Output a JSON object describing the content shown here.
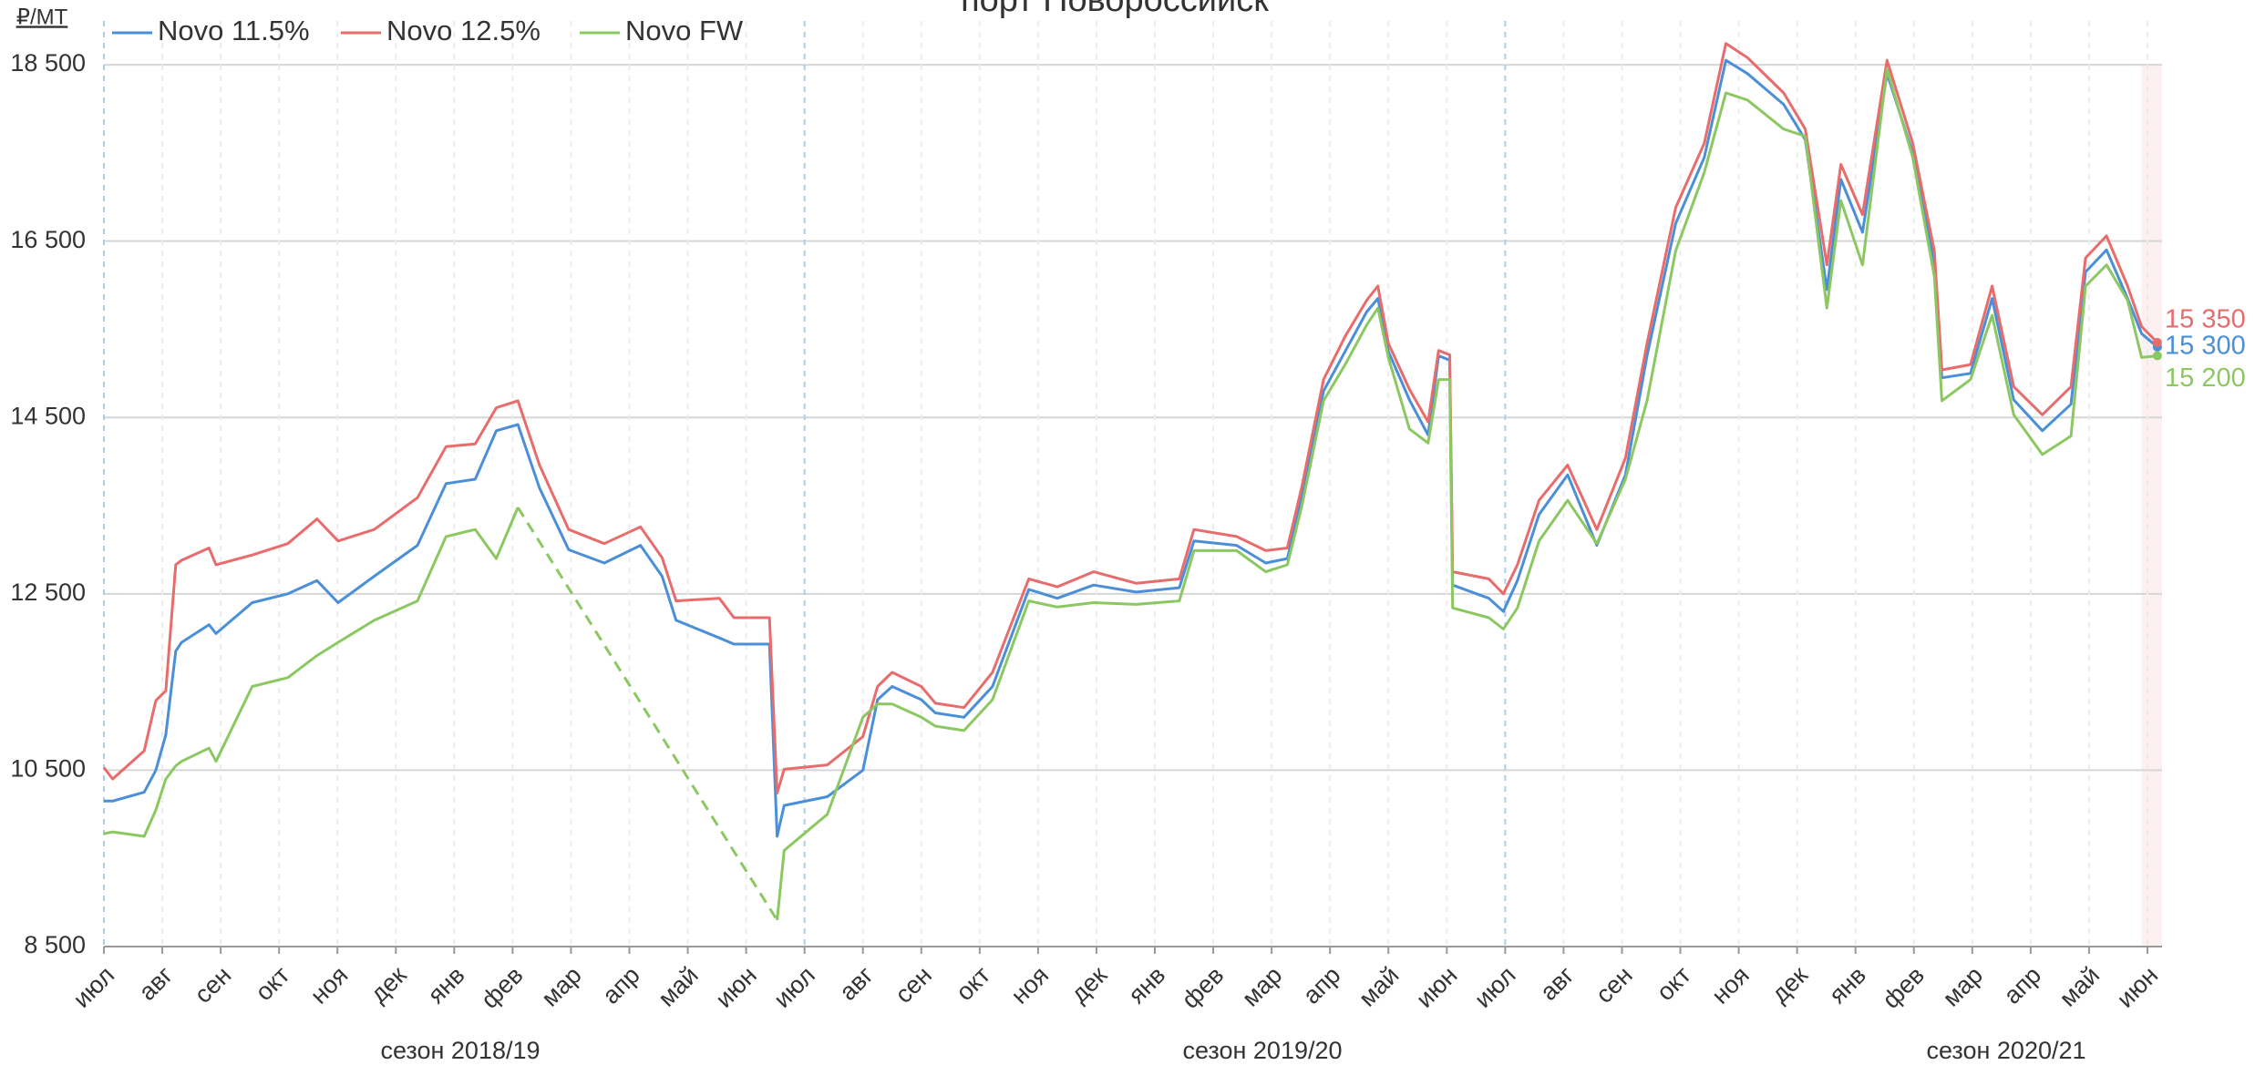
{
  "chart_data": {
    "type": "line",
    "title": "порт Новороссийск",
    "y_unit": "₽/MT",
    "season_labels": [
      "сезон 2018/19",
      "сезон 2019/20",
      "сезон 2020/21"
    ],
    "xlim": [
      0,
      35.25
    ],
    "ylim": [
      8500,
      19100
    ],
    "yticks": [
      {
        "value": 8500,
        "label": "8 500"
      },
      {
        "value": 10500,
        "label": "10 500"
      },
      {
        "value": 12500,
        "label": "12 500"
      },
      {
        "value": 14500,
        "label": "14 500"
      },
      {
        "value": 16500,
        "label": "16 500"
      },
      {
        "value": 18500,
        "label": "18 500"
      }
    ],
    "xticks": [
      {
        "value": 0,
        "label": "июл"
      },
      {
        "value": 1,
        "label": "авг"
      },
      {
        "value": 2,
        "label": "сен"
      },
      {
        "value": 3,
        "label": "окт"
      },
      {
        "value": 4,
        "label": "ноя"
      },
      {
        "value": 5,
        "label": "дек"
      },
      {
        "value": 6,
        "label": "янв"
      },
      {
        "value": 7,
        "label": "фев"
      },
      {
        "value": 8,
        "label": "мар"
      },
      {
        "value": 9,
        "label": "апр"
      },
      {
        "value": 10,
        "label": "май"
      },
      {
        "value": 11,
        "label": "июн"
      },
      {
        "value": 12,
        "label": "июл"
      },
      {
        "value": 13,
        "label": "авг"
      },
      {
        "value": 14,
        "label": "сен"
      },
      {
        "value": 15,
        "label": "окт"
      },
      {
        "value": 16,
        "label": "ноя"
      },
      {
        "value": 17,
        "label": "дек"
      },
      {
        "value": 18,
        "label": "янв"
      },
      {
        "value": 19,
        "label": "фев"
      },
      {
        "value": 20,
        "label": "мар"
      },
      {
        "value": 21,
        "label": "апр"
      },
      {
        "value": 22,
        "label": "май"
      },
      {
        "value": 23,
        "label": "июн"
      },
      {
        "value": 24,
        "label": "июл"
      },
      {
        "value": 25,
        "label": "авг"
      },
      {
        "value": 26,
        "label": "сен"
      },
      {
        "value": 27,
        "label": "окт"
      },
      {
        "value": 28,
        "label": "ноя"
      },
      {
        "value": 29,
        "label": "дек"
      },
      {
        "value": 30,
        "label": "янв"
      },
      {
        "value": 31,
        "label": "фев"
      },
      {
        "value": 32,
        "label": "мар"
      },
      {
        "value": 33,
        "label": "апр"
      },
      {
        "value": 34,
        "label": "май"
      },
      {
        "value": 35,
        "label": "июн"
      }
    ],
    "grid": true,
    "x": [
      0,
      0.15,
      0.69,
      0.89,
      1.06,
      1.23,
      1.33,
      1.8,
      1.92,
      2.54,
      3.15,
      3.65,
      4.01,
      4.63,
      5.37,
      5.86,
      6.36,
      6.72,
      7.09,
      7.46,
      7.96,
      8.57,
      9.19,
      9.56,
      9.8,
      10.54,
      10.79,
      11.4,
      11.53,
      11.65,
      12.39,
      13.0,
      13.25,
      13.5,
      14.0,
      14.24,
      14.73,
      15.22,
      15.84,
      16.33,
      16.95,
      17.68,
      18.42,
      18.67,
      19.4,
      19.9,
      20.27,
      20.52,
      20.89,
      21.26,
      21.63,
      21.82,
      22.0,
      22.36,
      22.68,
      22.86,
      23.05,
      23.1,
      23.72,
      23.97,
      24.21,
      24.58,
      25.07,
      25.57,
      26.06,
      26.43,
      26.92,
      27.41,
      27.78,
      28.15,
      28.77,
      29.14,
      29.51,
      29.75,
      30.12,
      30.54,
      30.98,
      31.35,
      31.48,
      31.97,
      32.34,
      32.71,
      33.2,
      33.69,
      33.94,
      34.3,
      34.66,
      34.9,
      35.17
    ],
    "series": [
      {
        "name": "Novo 11.5%",
        "color": "#4a8fd8",
        "end_label": "15 300",
        "values": [
          10150,
          10150,
          10250,
          10500,
          10900,
          11850,
          11950,
          12150,
          12050,
          12400,
          12500,
          12650,
          12400,
          12700,
          13050,
          13750,
          13800,
          14350,
          14420,
          13700,
          13000,
          12850,
          13050,
          12700,
          12200,
          12000,
          11930,
          11930,
          9750,
          10100,
          10200,
          10500,
          11300,
          11450,
          11300,
          11150,
          11100,
          11450,
          12550,
          12450,
          12600,
          12520,
          12570,
          13100,
          13050,
          12850,
          12900,
          13600,
          14800,
          15250,
          15700,
          15850,
          15250,
          14700,
          14300,
          15200,
          15150,
          12600,
          12450,
          12300,
          12650,
          13400,
          13850,
          13050,
          13850,
          15200,
          16700,
          17450,
          18550,
          18400,
          18050,
          17650,
          15950,
          17200,
          16600,
          18400,
          17500,
          16250,
          14950,
          15000,
          15850,
          14700,
          14350,
          14650,
          16150,
          16400,
          15850,
          15450,
          15300
        ]
      },
      {
        "name": "Novo 12.5%",
        "color": "#e86c6c",
        "end_label": "15 350",
        "values": [
          10530,
          10400,
          10720,
          11290,
          11400,
          12830,
          12880,
          13020,
          12830,
          12940,
          13070,
          13350,
          13100,
          13230,
          13590,
          14170,
          14200,
          14610,
          14690,
          13960,
          13230,
          13070,
          13260,
          12910,
          12420,
          12450,
          12230,
          12230,
          10240,
          10510,
          10560,
          10880,
          11450,
          11610,
          11450,
          11260,
          11210,
          11610,
          12670,
          12580,
          12750,
          12620,
          12670,
          13230,
          13150,
          12990,
          13020,
          13720,
          14930,
          15420,
          15830,
          15990,
          15340,
          14820,
          14450,
          15260,
          15210,
          12750,
          12670,
          12500,
          12830,
          13560,
          13960,
          13230,
          14040,
          15340,
          16880,
          17610,
          18740,
          18580,
          18180,
          17770,
          16230,
          17370,
          16800,
          18550,
          17610,
          16390,
          15040,
          15100,
          15990,
          14850,
          14530,
          14850,
          16310,
          16560,
          15990,
          15530,
          15350
        ]
      },
      {
        "name": "Novo FW",
        "color": "#8cc862",
        "end_label": "15 200",
        "connect_gaps": "dashed",
        "values": [
          9780,
          9800,
          9750,
          10050,
          10400,
          10550,
          10600,
          10750,
          10600,
          11450,
          11550,
          11800,
          11950,
          12200,
          12420,
          13150,
          13230,
          12900,
          13480,
          null,
          null,
          null,
          null,
          null,
          null,
          null,
          null,
          null,
          8800,
          9590,
          10000,
          11100,
          11250,
          11250,
          11100,
          11000,
          10950,
          11300,
          12420,
          12350,
          12400,
          12380,
          12420,
          12990,
          12990,
          12750,
          12830,
          13500,
          14690,
          15100,
          15550,
          15740,
          15180,
          14370,
          14210,
          14930,
          14930,
          12340,
          12230,
          12100,
          12340,
          13100,
          13560,
          13070,
          13800,
          14690,
          16390,
          17280,
          18180,
          18100,
          17770,
          17690,
          15740,
          16960,
          16230,
          18450,
          17450,
          16100,
          14690,
          14930,
          15660,
          14530,
          14080,
          14290,
          15990,
          16230,
          15830,
          15180,
          15200
        ]
      }
    ]
  }
}
